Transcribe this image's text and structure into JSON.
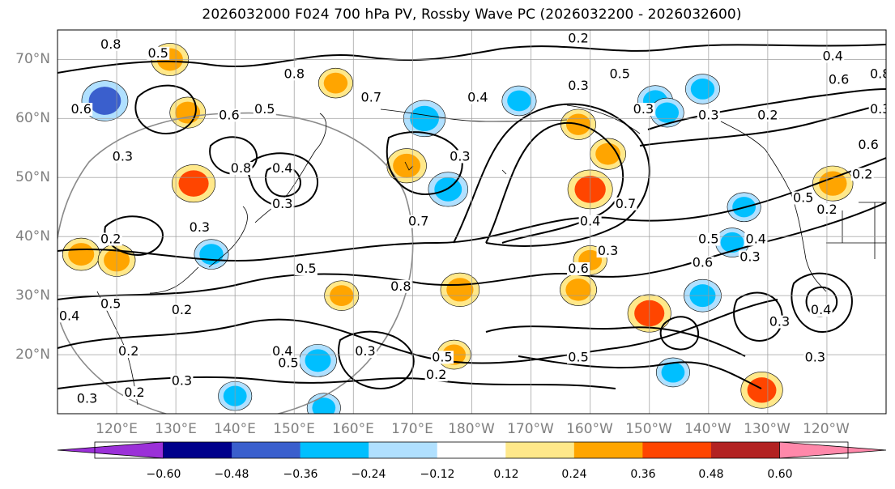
{
  "title": "2026032000 F024 700 hPa PV, Rossby Wave PC (2026032200 - 2026032600)",
  "map": {
    "lat_labels": [
      "70°N",
      "60°N",
      "50°N",
      "40°N",
      "30°N",
      "20°N"
    ],
    "lon_labels": [
      "120°E",
      "130°E",
      "140°E",
      "150°E",
      "160°E",
      "170°E",
      "180°W",
      "170°W",
      "160°W",
      "150°W",
      "140°W",
      "130°W",
      "120°W"
    ],
    "lat_range": [
      10,
      75
    ],
    "lon_range": [
      110,
      250
    ]
  },
  "colorbar": {
    "colors": [
      "#9b30d8",
      "#00008b",
      "#3a5fcd",
      "#00bfff",
      "#b0e0ff",
      "#ffffff",
      "#ffe88a",
      "#ffa500",
      "#ff4500",
      "#b22222",
      "#ff88aa"
    ],
    "ticks": [
      "−0.60",
      "−0.48",
      "−0.36",
      "−0.24",
      "−0.12",
      "0.12",
      "0.24",
      "0.36",
      "0.48",
      "0.60"
    ]
  },
  "contour_labels": [
    {
      "text": "0.8",
      "lon": 119,
      "lat": 72
    },
    {
      "text": "0.5",
      "lon": 127,
      "lat": 70.5
    },
    {
      "text": "0.6",
      "lon": 114,
      "lat": 61
    },
    {
      "text": "0.3",
      "lon": 121,
      "lat": 53
    },
    {
      "text": "0.6",
      "lon": 139,
      "lat": 60
    },
    {
      "text": "0.5",
      "lon": 145,
      "lat": 61
    },
    {
      "text": "0.8",
      "lon": 150,
      "lat": 67
    },
    {
      "text": "0.8",
      "lon": 141,
      "lat": 51
    },
    {
      "text": "0.4",
      "lon": 148,
      "lat": 51
    },
    {
      "text": "0.3",
      "lon": 148,
      "lat": 45
    },
    {
      "text": "0.3",
      "lon": 134,
      "lat": 41
    },
    {
      "text": "0.2",
      "lon": 119,
      "lat": 39
    },
    {
      "text": "0.5",
      "lon": 152,
      "lat": 34
    },
    {
      "text": "0.5",
      "lon": 119,
      "lat": 28
    },
    {
      "text": "0.2",
      "lon": 131,
      "lat": 27
    },
    {
      "text": "0.4",
      "lon": 112,
      "lat": 26
    },
    {
      "text": "0.2",
      "lon": 122,
      "lat": 20
    },
    {
      "text": "0.3",
      "lon": 131,
      "lat": 15
    },
    {
      "text": "0.3",
      "lon": 115,
      "lat": 12
    },
    {
      "text": "0.2",
      "lon": 123,
      "lat": 13
    },
    {
      "text": "0.4",
      "lon": 148,
      "lat": 20
    },
    {
      "text": "0.5",
      "lon": 149,
      "lat": 18
    },
    {
      "text": "0.3",
      "lon": 162,
      "lat": 20
    },
    {
      "text": "0.8",
      "lon": 168,
      "lat": 31
    },
    {
      "text": "0.5",
      "lon": 175,
      "lat": 19
    },
    {
      "text": "0.2",
      "lon": 174,
      "lat": 16
    },
    {
      "text": "0.5",
      "lon": 198,
      "lat": 19
    },
    {
      "text": "0.2",
      "lon": 198,
      "lat": 73
    },
    {
      "text": "0.3",
      "lon": 198,
      "lat": 65
    },
    {
      "text": "0.5",
      "lon": 205,
      "lat": 67
    },
    {
      "text": "0.4",
      "lon": 181,
      "lat": 63
    },
    {
      "text": "0.7",
      "lon": 163,
      "lat": 63
    },
    {
      "text": "0.3",
      "lon": 178,
      "lat": 53
    },
    {
      "text": "0.7",
      "lon": 171,
      "lat": 42
    },
    {
      "text": "0.4",
      "lon": 200,
      "lat": 42
    },
    {
      "text": "0.7",
      "lon": 206,
      "lat": 45
    },
    {
      "text": "0.3",
      "lon": 203,
      "lat": 37
    },
    {
      "text": "0.6",
      "lon": 198,
      "lat": 34
    },
    {
      "text": "0.5",
      "lon": 220,
      "lat": 39
    },
    {
      "text": "0.6",
      "lon": 219,
      "lat": 35
    },
    {
      "text": "0.3",
      "lon": 209,
      "lat": 61
    },
    {
      "text": "0.3",
      "lon": 220,
      "lat": 60
    },
    {
      "text": "0.3",
      "lon": 227,
      "lat": 36
    },
    {
      "text": "0.4",
      "lon": 228,
      "lat": 39
    },
    {
      "text": "0.5",
      "lon": 236,
      "lat": 46
    },
    {
      "text": "0.2",
      "lon": 240,
      "lat": 44
    },
    {
      "text": "0.4",
      "lon": 239,
      "lat": 27
    },
    {
      "text": "0.3",
      "lon": 232,
      "lat": 25
    },
    {
      "text": "0.3",
      "lon": 238,
      "lat": 19
    },
    {
      "text": "0.4",
      "lon": 241,
      "lat": 70
    },
    {
      "text": "0.6",
      "lon": 242,
      "lat": 66
    },
    {
      "text": "0.8",
      "lon": 249,
      "lat": 67
    },
    {
      "text": "0.3",
      "lon": 249,
      "lat": 61
    },
    {
      "text": "0.2",
      "lon": 230,
      "lat": 60
    },
    {
      "text": "0.6",
      "lon": 247,
      "lat": 55
    },
    {
      "text": "0.2",
      "lon": 246,
      "lat": 50
    }
  ],
  "pv_anomalies": [
    {
      "lon": 118,
      "lat": 63,
      "value": -0.42
    },
    {
      "lon": 129,
      "lat": 70,
      "value": 0.3
    },
    {
      "lon": 132,
      "lat": 61,
      "value": 0.28
    },
    {
      "lon": 133,
      "lat": 49,
      "value": 0.38
    },
    {
      "lon": 114,
      "lat": 37,
      "value": 0.3
    },
    {
      "lon": 120,
      "lat": 36,
      "value": 0.3
    },
    {
      "lon": 136,
      "lat": 37,
      "value": -0.26
    },
    {
      "lon": 157,
      "lat": 66,
      "value": 0.26
    },
    {
      "lon": 169,
      "lat": 52,
      "value": 0.33
    },
    {
      "lon": 172,
      "lat": 60,
      "value": -0.36
    },
    {
      "lon": 176,
      "lat": 48,
      "value": -0.33
    },
    {
      "lon": 188,
      "lat": 63,
      "value": -0.26
    },
    {
      "lon": 200,
      "lat": 48,
      "value": 0.4
    },
    {
      "lon": 198,
      "lat": 59,
      "value": 0.27
    },
    {
      "lon": 203,
      "lat": 54,
      "value": 0.28
    },
    {
      "lon": 211,
      "lat": 63,
      "value": -0.27
    },
    {
      "lon": 219,
      "lat": 65,
      "value": -0.26
    },
    {
      "lon": 241,
      "lat": 49,
      "value": 0.34
    },
    {
      "lon": 219,
      "lat": 30,
      "value": -0.3
    },
    {
      "lon": 198,
      "lat": 31,
      "value": 0.29
    },
    {
      "lon": 178,
      "lat": 31,
      "value": 0.32
    },
    {
      "lon": 158,
      "lat": 30,
      "value": 0.26
    },
    {
      "lon": 210,
      "lat": 27,
      "value": 0.38
    },
    {
      "lon": 229,
      "lat": 14,
      "value": 0.36
    },
    {
      "lon": 177,
      "lat": 20,
      "value": 0.25
    },
    {
      "lon": 154,
      "lat": 19,
      "value": -0.3
    },
    {
      "lon": 140,
      "lat": 13,
      "value": -0.25
    },
    {
      "lon": 200,
      "lat": 36,
      "value": 0.25
    },
    {
      "lon": 213,
      "lat": 61,
      "value": -0.25
    },
    {
      "lon": 224,
      "lat": 39,
      "value": -0.25
    },
    {
      "lon": 226,
      "lat": 45,
      "value": -0.25
    },
    {
      "lon": 214,
      "lat": 17,
      "value": -0.25
    },
    {
      "lon": 155,
      "lat": 11,
      "value": -0.25
    }
  ]
}
